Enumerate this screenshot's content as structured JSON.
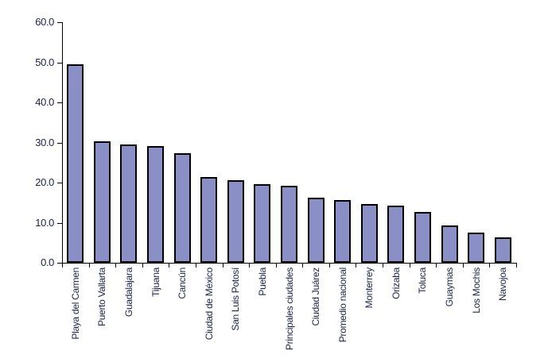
{
  "figure": {
    "background": "#ffffff",
    "text_color": "#1c2448"
  },
  "chart_data": {
    "type": "bar",
    "title": "",
    "xlabel": "",
    "ylabel": "",
    "categories": [
      "Playa del Carmen",
      "Puerto Vallarta",
      "Guadalajara",
      "Tijuana",
      "Cancún",
      "Ciudad de México",
      "San Luis Potosí",
      "Puebla",
      "Principales ciudades",
      "Ciudad Juárez",
      "Promedio nacional",
      "Monterrey",
      "Orizaba",
      "Toluca",
      "Guaymas",
      "Los Mochis",
      "Navojoa"
    ],
    "values": [
      49.5,
      30.2,
      29.6,
      29.2,
      27.4,
      21.4,
      20.5,
      19.7,
      19.2,
      16.2,
      15.7,
      14.7,
      14.3,
      12.7,
      9.3,
      7.6,
      6.3
    ],
    "ylim": [
      0,
      60
    ],
    "ytick_interval": 10,
    "ytick_labels": [
      "0.0",
      "10.0",
      "20.0",
      "30.0",
      "40.0",
      "50.0",
      "60.0"
    ],
    "x_labels_rotation_deg": -90,
    "grid": false,
    "legend": false,
    "bar_fill_color": "#8A90C6",
    "bar_border_color": "#000000",
    "axis_color": "#000000"
  }
}
